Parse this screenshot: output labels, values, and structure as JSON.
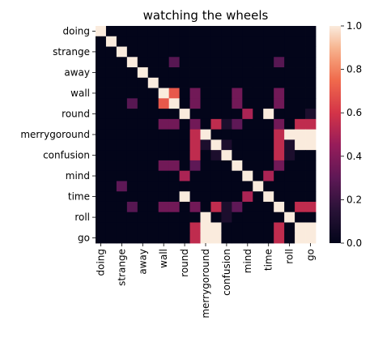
{
  "chart_data": {
    "type": "heatmap",
    "title": "watching the wheels",
    "xlabel": "",
    "ylabel": "",
    "x_tick_labels": [
      "doing",
      "strange",
      "away",
      "wall",
      "round",
      "merrygoround",
      "confusion",
      "mind",
      "time",
      "roll",
      "go"
    ],
    "y_tick_labels": [
      "doing",
      "strange",
      "away",
      "wall",
      "round",
      "merrygoround",
      "confusion",
      "mind",
      "time",
      "roll",
      "go"
    ],
    "n_rows": 21,
    "n_cols": 21,
    "values": [
      [
        1,
        0,
        0,
        0,
        0,
        0,
        0,
        0,
        0,
        0,
        0,
        0,
        0,
        0,
        0,
        0,
        0,
        0,
        0,
        0,
        0
      ],
      [
        0,
        1,
        0,
        0,
        0,
        0,
        0,
        0,
        0,
        0,
        0,
        0,
        0,
        0,
        0,
        0,
        0,
        0,
        0,
        0,
        0
      ],
      [
        0,
        0,
        1,
        0,
        0,
        0,
        0,
        0,
        0,
        0,
        0,
        0,
        0,
        0,
        0,
        0,
        0,
        0,
        0,
        0,
        0
      ],
      [
        0,
        0,
        0,
        1,
        0,
        0,
        0,
        0,
        0,
        0,
        0,
        0,
        0,
        0,
        0,
        0,
        0,
        0,
        0,
        0,
        0
      ],
      [
        0,
        0,
        0,
        0,
        1,
        0,
        0,
        0,
        0,
        0,
        0,
        0,
        0,
        0,
        0,
        0,
        0,
        0,
        0,
        0,
        0
      ],
      [
        0,
        0,
        0,
        0,
        0,
        1,
        0,
        0,
        0,
        0,
        0,
        0,
        0,
        0,
        0,
        0,
        0,
        0,
        0,
        0,
        0
      ],
      [
        0,
        0,
        0,
        0,
        0,
        0,
        1,
        0,
        0,
        0,
        0,
        0,
        0,
        0,
        0,
        0,
        0,
        0,
        0,
        0,
        0
      ],
      [
        0,
        0,
        0,
        0,
        0,
        0,
        0,
        1,
        0,
        0,
        0,
        0,
        0,
        0,
        0,
        0,
        0,
        0,
        0,
        0,
        0
      ],
      [
        0,
        0,
        0,
        0,
        0,
        0,
        0,
        0,
        1,
        0,
        0,
        0,
        0,
        0,
        0,
        0,
        0,
        0,
        0,
        0,
        0
      ],
      [
        0,
        0,
        0,
        0,
        0,
        0,
        0,
        0,
        0,
        1,
        0,
        0,
        0,
        0,
        0,
        0,
        0,
        0,
        0,
        0,
        0
      ],
      [
        0,
        0,
        0,
        0,
        0,
        0,
        0,
        0,
        0,
        0,
        1,
        0,
        0,
        0,
        0,
        0,
        0,
        0,
        0,
        0,
        0
      ],
      [
        0,
        0,
        0,
        0,
        0,
        0,
        0,
        0,
        0,
        0,
        0,
        1,
        0,
        0,
        0,
        0,
        0,
        0,
        0,
        0,
        0
      ],
      [
        0,
        0,
        0,
        0,
        0,
        0,
        0,
        0,
        0,
        0,
        0,
        0,
        1,
        0,
        0,
        0,
        0,
        0,
        0,
        0,
        0
      ],
      [
        0,
        0,
        0,
        0,
        0,
        0,
        0,
        0,
        0,
        0,
        0,
        0,
        0,
        1,
        0,
        0,
        0,
        0,
        0,
        0,
        0
      ],
      [
        0,
        0,
        0,
        0,
        0,
        0,
        0,
        0,
        0,
        0,
        0,
        0,
        0,
        0,
        1,
        0,
        0,
        0,
        0,
        0,
        0
      ],
      [
        0,
        0,
        0,
        0,
        0,
        0,
        0,
        0,
        0,
        0,
        0,
        0,
        0,
        0,
        0,
        1,
        0,
        0,
        0,
        0,
        0
      ],
      [
        0,
        0,
        0,
        0,
        0,
        0,
        0,
        0,
        0,
        0,
        0,
        0,
        0,
        0,
        0,
        0,
        1,
        0,
        0,
        0,
        0
      ],
      [
        0,
        0,
        0,
        0,
        0,
        0,
        0,
        0,
        0,
        0,
        0,
        0,
        0,
        0,
        0,
        0,
        0,
        1,
        0,
        0,
        0
      ],
      [
        0,
        0,
        0,
        0,
        0,
        0,
        0,
        0,
        0,
        0,
        0,
        0,
        0,
        0,
        0,
        0,
        0,
        0,
        1,
        0,
        0
      ],
      [
        0,
        0,
        0,
        0,
        0,
        0,
        0,
        0,
        0,
        0,
        0,
        0,
        0,
        0,
        0,
        0,
        0,
        0,
        0,
        1,
        0
      ],
      [
        0,
        0,
        0,
        0,
        0,
        0,
        0,
        0,
        0,
        0,
        0,
        0,
        0,
        0,
        0,
        0,
        0,
        0,
        0,
        0,
        1
      ]
    ],
    "overrides": [
      [
        3,
        7,
        0.28
      ],
      [
        7,
        3,
        0.28
      ],
      [
        17,
        3,
        0.28
      ],
      [
        3,
        17,
        0.28
      ],
      [
        6,
        6,
        1
      ],
      [
        6,
        7,
        0.7
      ],
      [
        7,
        6,
        0.7
      ],
      [
        7,
        7,
        1
      ],
      [
        6,
        9,
        0.35
      ],
      [
        7,
        9,
        0.35
      ],
      [
        6,
        13,
        0.35
      ],
      [
        7,
        13,
        0.35
      ],
      [
        6,
        17,
        0.35
      ],
      [
        7,
        17,
        0.35
      ],
      [
        8,
        14,
        0.5
      ],
      [
        14,
        8,
        0.5
      ],
      [
        8,
        16,
        1
      ],
      [
        16,
        8,
        1
      ],
      [
        8,
        20,
        0.1
      ],
      [
        9,
        6,
        0.35
      ],
      [
        9,
        7,
        0.35
      ],
      [
        9,
        9,
        0.35
      ],
      [
        9,
        13,
        0.3
      ],
      [
        9,
        17,
        0.35
      ],
      [
        9,
        11,
        0.55
      ],
      [
        9,
        12,
        0.1
      ],
      [
        9,
        19,
        0.55
      ],
      [
        9,
        20,
        0.55
      ],
      [
        6,
        9,
        0.35
      ],
      [
        7,
        9,
        0.35
      ],
      [
        13,
        6,
        0.35
      ],
      [
        13,
        7,
        0.35
      ],
      [
        17,
        6,
        0.35
      ],
      [
        17,
        7,
        0.35
      ],
      [
        10,
        18,
        1
      ],
      [
        18,
        10,
        1
      ],
      [
        10,
        19,
        1
      ],
      [
        10,
        20,
        1
      ],
      [
        11,
        9,
        0.55
      ],
      [
        11,
        10,
        0.1
      ],
      [
        11,
        17,
        0.55
      ],
      [
        11,
        18,
        0.1
      ],
      [
        11,
        12,
        0.1
      ],
      [
        11,
        19,
        1
      ],
      [
        11,
        20,
        1
      ],
      [
        12,
        11,
        0.1
      ],
      [
        12,
        18,
        0.1
      ],
      [
        13,
        6,
        0.35
      ],
      [
        13,
        7,
        0.35
      ],
      [
        13,
        9,
        0.3
      ],
      [
        13,
        17,
        0.35
      ],
      [
        14,
        8,
        0.5
      ],
      [
        14,
        16,
        0.5
      ],
      [
        15,
        2,
        0.3
      ],
      [
        16,
        8,
        1
      ],
      [
        16,
        14,
        0.5
      ],
      [
        17,
        6,
        0.35
      ],
      [
        17,
        7,
        0.35
      ],
      [
        17,
        9,
        0.35
      ],
      [
        17,
        11,
        0.55
      ],
      [
        17,
        12,
        0.1
      ],
      [
        17,
        13,
        0.3
      ],
      [
        17,
        19,
        0.55
      ],
      [
        17,
        20,
        0.55
      ],
      [
        18,
        10,
        1
      ],
      [
        18,
        12,
        0.1
      ],
      [
        19,
        9,
        0.55
      ],
      [
        19,
        10,
        1
      ],
      [
        19,
        11,
        1
      ],
      [
        19,
        17,
        0.55
      ],
      [
        19,
        19,
        1
      ],
      [
        19,
        20,
        1
      ],
      [
        20,
        9,
        0.55
      ],
      [
        20,
        10,
        1
      ],
      [
        20,
        11,
        1
      ],
      [
        20,
        17,
        0.55
      ],
      [
        20,
        19,
        1
      ],
      [
        20,
        20,
        1
      ],
      [
        12,
        9,
        0.55
      ],
      [
        12,
        17,
        0.55
      ],
      [
        10,
        9,
        0.55
      ],
      [
        10,
        17,
        0.55
      ],
      [
        9,
        12,
        0.1
      ],
      [
        11,
        12,
        0.1
      ],
      [
        4,
        17,
        0.0
      ]
    ],
    "colorbar": {
      "min": 0,
      "max": 1,
      "ticks": [
        "0.0",
        "0.2",
        "0.4",
        "0.6",
        "0.8",
        "1.0"
      ]
    },
    "colormap": "rocket",
    "grid": false,
    "legend": "colorbar-right"
  }
}
